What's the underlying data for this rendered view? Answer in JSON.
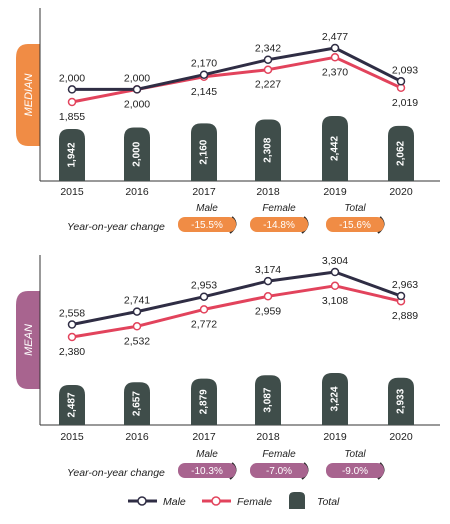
{
  "colors": {
    "male": "#2f2d44",
    "female": "#e2435c",
    "total_bar": "#3f4d4a",
    "median_accent": "#f08c45",
    "mean_accent": "#a8648f",
    "axis": "#333333"
  },
  "yoy": {
    "label": "Year-on-year change",
    "heads": [
      "Male",
      "Female",
      "Total"
    ]
  },
  "legend": {
    "male": "Male",
    "female": "Female",
    "total": "Total"
  },
  "chart_data": [
    {
      "type": "line",
      "title": "MEDIAN",
      "categories": [
        "2015",
        "2016",
        "2017",
        "2018",
        "2019",
        "2020"
      ],
      "series": [
        {
          "name": "Male",
          "values": [
            2000,
            2000,
            2170,
            2342,
            2477,
            2093
          ],
          "labels": [
            "2,000",
            "2,000",
            "2,170",
            "2,342",
            "2,477",
            "2,093"
          ]
        },
        {
          "name": "Female",
          "values": [
            1855,
            2000,
            2145,
            2227,
            2370,
            2019
          ],
          "labels": [
            "1,855",
            "2,000",
            "2,145",
            "2,227",
            "2,370",
            "2,019"
          ]
        },
        {
          "name": "Total",
          "mark": "bar",
          "values": [
            1942,
            2000,
            2160,
            2308,
            2442,
            2062
          ],
          "labels": [
            "1,942",
            "2,000",
            "2,160",
            "2,308",
            "2,442",
            "2,062"
          ]
        }
      ],
      "yoy": [
        "-15.5%",
        "-14.8%",
        "-15.6%"
      ]
    },
    {
      "type": "line",
      "title": "MEAN",
      "categories": [
        "2015",
        "2016",
        "2017",
        "2018",
        "2019",
        "2020"
      ],
      "series": [
        {
          "name": "Male",
          "values": [
            2558,
            2741,
            2953,
            3174,
            3304,
            2963
          ],
          "labels": [
            "2,558",
            "2,741",
            "2,953",
            "3,174",
            "3,304",
            "2,963"
          ]
        },
        {
          "name": "Female",
          "values": [
            2380,
            2532,
            2772,
            2959,
            3108,
            2889
          ],
          "labels": [
            "2,380",
            "2,532",
            "2,772",
            "2,959",
            "3,108",
            "2,889"
          ]
        },
        {
          "name": "Total",
          "mark": "bar",
          "values": [
            2487,
            2657,
            2879,
            3087,
            3224,
            2933
          ],
          "labels": [
            "2,487",
            "2,657",
            "2,879",
            "3,087",
            "3,224",
            "2,933"
          ]
        }
      ],
      "yoy": [
        "-10.3%",
        "-7.0%",
        "-9.0%"
      ]
    }
  ]
}
